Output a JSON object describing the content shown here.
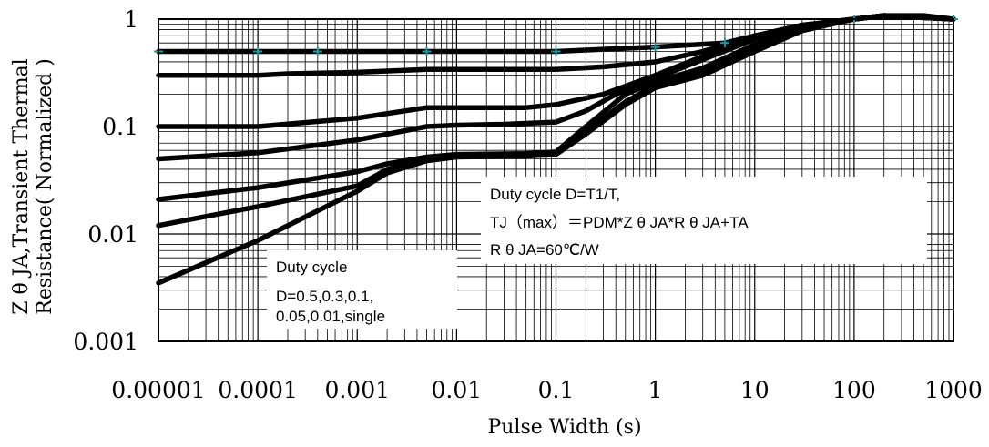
{
  "chart_data": {
    "type": "line",
    "title": "",
    "xlabel": "Pulse Width (s)",
    "ylabel": [
      "Z θ JA,Transient Thermal",
      "Resistance( Normalized )"
    ],
    "x_scale": "log",
    "y_scale": "log",
    "xlim": [
      1e-05,
      1000
    ],
    "ylim": [
      0.001,
      1
    ],
    "x_ticks": [
      "0.00001",
      "0.0001",
      "0.001",
      "0.01",
      "0.1",
      "1",
      "10",
      "100",
      "1000"
    ],
    "y_ticks": [
      "1",
      "0.1",
      "0.01",
      "0.001"
    ],
    "grid": true,
    "annotations": [
      {
        "id": "duty-eq",
        "lines": [
          "Duty cycle D=T1/T,",
          "TJ（max）＝PDM*Z θ JA*R θ JA+TA",
          "R θ JA=60℃/W"
        ]
      },
      {
        "id": "duty-list",
        "lines": [
          "Duty cycle",
          "D=0.5,0.3,0.1,",
          "0.05,0.01,single"
        ]
      }
    ],
    "series": [
      {
        "x": [
          1e-05,
          0.0001,
          0.001,
          0.01,
          0.1,
          1,
          5,
          10,
          20,
          100,
          200,
          500,
          1000
        ],
        "y": [
          0.5,
          0.5,
          0.5,
          0.5,
          0.5,
          0.55,
          0.6,
          0.7,
          0.8,
          1.0,
          1.08,
          1.08,
          1.0
        ]
      },
      {
        "x": [
          1e-05,
          0.0001,
          0.0002,
          0.001,
          0.005,
          0.01,
          0.1,
          0.3,
          1,
          3,
          10,
          30,
          100,
          200,
          1000
        ],
        "y": [
          0.3,
          0.3,
          0.31,
          0.32,
          0.34,
          0.34,
          0.34,
          0.36,
          0.4,
          0.5,
          0.7,
          0.88,
          1.0,
          1.08,
          1.0
        ]
      },
      {
        "x": [
          1e-05,
          0.0001,
          0.001,
          0.005,
          0.01,
          0.05,
          0.1,
          0.3,
          1,
          3,
          10,
          30,
          100,
          200,
          1000
        ],
        "y": [
          0.1,
          0.1,
          0.12,
          0.15,
          0.15,
          0.15,
          0.16,
          0.2,
          0.3,
          0.45,
          0.68,
          0.88,
          1.0,
          1.08,
          1.0
        ]
      },
      {
        "x": [
          1e-05,
          0.0001,
          0.001,
          0.005,
          0.01,
          0.03,
          0.1,
          0.2,
          0.4,
          1,
          3,
          10,
          30,
          100,
          200,
          1000
        ],
        "y": [
          0.05,
          0.057,
          0.075,
          0.1,
          0.103,
          0.105,
          0.11,
          0.14,
          0.2,
          0.28,
          0.42,
          0.65,
          0.87,
          1.0,
          1.08,
          1.0
        ]
      },
      {
        "x": [
          1e-05,
          0.0001,
          0.001,
          0.002,
          0.005,
          0.01,
          0.05,
          0.1,
          0.2,
          0.5,
          1,
          3,
          10,
          30,
          100,
          200,
          1000
        ],
        "y": [
          0.021,
          0.027,
          0.038,
          0.045,
          0.052,
          0.055,
          0.056,
          0.058,
          0.1,
          0.2,
          0.26,
          0.35,
          0.58,
          0.82,
          1.0,
          1.08,
          1.0
        ]
      },
      {
        "x": [
          1e-05,
          0.0001,
          0.001,
          0.002,
          0.005,
          0.01,
          0.05,
          0.1,
          0.2,
          0.5,
          1,
          3,
          10,
          30,
          100,
          200,
          1000
        ],
        "y": [
          0.012,
          0.018,
          0.028,
          0.04,
          0.05,
          0.053,
          0.054,
          0.056,
          0.09,
          0.17,
          0.24,
          0.32,
          0.55,
          0.8,
          1.0,
          1.08,
          1.0
        ]
      },
      {
        "x": [
          1e-05,
          0.0001,
          0.001,
          0.002,
          0.005,
          0.01,
          0.05,
          0.1,
          0.2,
          0.5,
          1,
          3,
          10,
          30,
          100,
          200,
          1000
        ],
        "y": [
          0.0035,
          0.0087,
          0.025,
          0.037,
          0.048,
          0.052,
          0.053,
          0.055,
          0.085,
          0.16,
          0.23,
          0.3,
          0.5,
          0.78,
          1.0,
          1.08,
          1.0
        ]
      }
    ],
    "markers": {
      "color": "#1a9aa8",
      "x": [
        1e-05,
        0.0001,
        0.0004,
        0.005,
        0.1,
        1,
        5,
        100,
        1000
      ],
      "y": [
        0.5,
        0.5,
        0.5,
        0.5,
        0.5,
        0.55,
        0.6,
        1.0,
        1.0
      ]
    }
  }
}
